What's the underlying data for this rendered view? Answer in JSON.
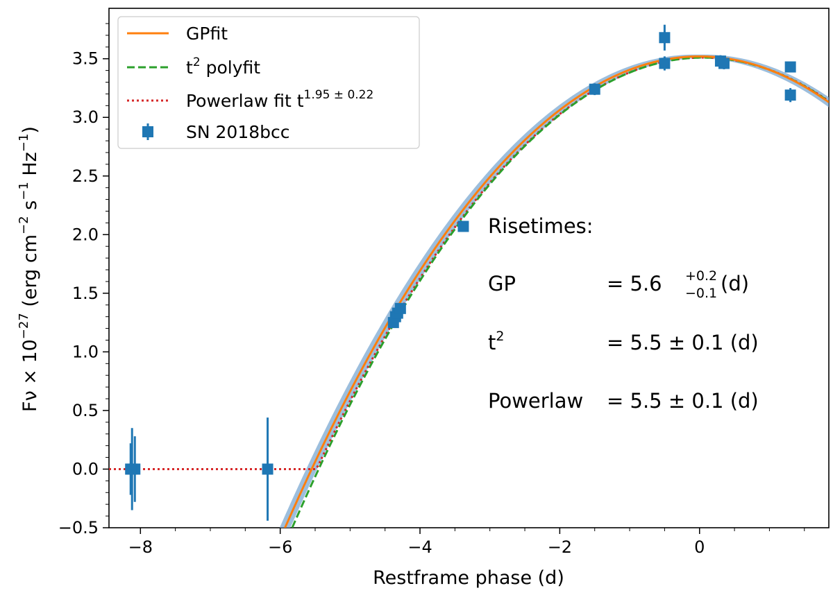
{
  "chart_data": {
    "type": "scatter",
    "xlabel": "Restframe phase (d)",
    "ylabel": {
      "prefix": "Fν × 10",
      "exp1": "−27",
      "mid1": " (erg cm",
      "exp2": "−2",
      "mid2": " s",
      "exp3": "−1",
      "mid3": " Hz",
      "exp4": "−1",
      "suffix": ")"
    },
    "xlim": [
      -8.45,
      1.85
    ],
    "ylim": [
      -0.5,
      3.93
    ],
    "x_ticks": [
      -8,
      -6,
      -4,
      -2,
      0
    ],
    "x_tick_labels": [
      "−8",
      "−6",
      "−4",
      "−2",
      "0"
    ],
    "y_ticks": [
      -0.5,
      0.0,
      0.5,
      1.0,
      1.5,
      2.0,
      2.5,
      3.0,
      3.5
    ],
    "y_tick_labels": [
      "−0.5",
      "0.0",
      "0.5",
      "1.0",
      "1.5",
      "2.0",
      "2.5",
      "3.0",
      "3.5"
    ],
    "colors": {
      "gp": "#ff7f0e",
      "gp_band": "#7ba8d1",
      "poly": "#2ca02c",
      "powerlaw": "#d62728",
      "data": "#1f77b4"
    },
    "legend": {
      "position": "upper-left",
      "entries": [
        {
          "label": "GPfit"
        },
        {
          "label": "t",
          "sup": "2",
          "rest": " polyfit"
        },
        {
          "label": "Powerlaw fit t",
          "sup": "1.95 ± 0.22"
        },
        {
          "label": "SN 2018bcc"
        }
      ]
    },
    "series": [
      {
        "name": "SN 2018bcc",
        "kind": "errorbar",
        "points": [
          {
            "x": -8.12,
            "y": 0.0,
            "err": 0.35
          },
          {
            "x": -8.08,
            "y": 0.0,
            "err": 0.28
          },
          {
            "x": -8.14,
            "y": 0.0,
            "err": 0.22
          },
          {
            "x": -6.18,
            "y": 0.0,
            "err": 0.44
          },
          {
            "x": -4.38,
            "y": 1.25,
            "err": 0.04
          },
          {
            "x": -4.35,
            "y": 1.3,
            "err": 0.04
          },
          {
            "x": -4.32,
            "y": 1.33,
            "err": 0.04
          },
          {
            "x": -4.28,
            "y": 1.37,
            "err": 0.04
          },
          {
            "x": -3.38,
            "y": 2.07,
            "err": 0.03
          },
          {
            "x": -1.5,
            "y": 3.24,
            "err": 0.05
          },
          {
            "x": -0.5,
            "y": 3.68,
            "err": 0.11
          },
          {
            "x": -0.5,
            "y": 3.46,
            "err": 0.06
          },
          {
            "x": 0.3,
            "y": 3.48,
            "err": 0.05
          },
          {
            "x": 0.35,
            "y": 3.46,
            "err": 0.05
          },
          {
            "x": 1.3,
            "y": 3.43,
            "err": 0.04
          },
          {
            "x": 1.3,
            "y": 3.19,
            "err": 0.06
          }
        ]
      },
      {
        "name": "GPfit",
        "kind": "line",
        "t_rise": 5.55,
        "peak": 3.52,
        "x0": 0.0,
        "x_start": -6.2,
        "x_end": 1.85
      },
      {
        "name": "t2 polyfit",
        "kind": "line",
        "t_rise": 5.5,
        "peak": 3.51,
        "x0": 0.05,
        "x_start": -6.2,
        "x_end": 1.85
      },
      {
        "name": "Powerlaw fit",
        "kind": "line",
        "t_rise": 5.53,
        "peak": 3.51,
        "x0": 0.05,
        "x_start": -8.45,
        "x_end": 1.85
      },
      {
        "name": "GP band",
        "kind": "band",
        "width_base": 0.015,
        "width_slope": 0.045
      }
    ],
    "annotations": {
      "title": "Risetimes:",
      "rows": [
        {
          "label": "GP",
          "value": "= 5.6",
          "sup": "+0.2",
          "sub": "−0.1",
          "unit": " (d)"
        },
        {
          "label": "t",
          "label_sup": "2",
          "value": "= 5.5 ± 0.1 (d)"
        },
        {
          "label": "Powerlaw",
          "value": "= 5.5 ± 0.1 (d)"
        }
      ]
    }
  }
}
